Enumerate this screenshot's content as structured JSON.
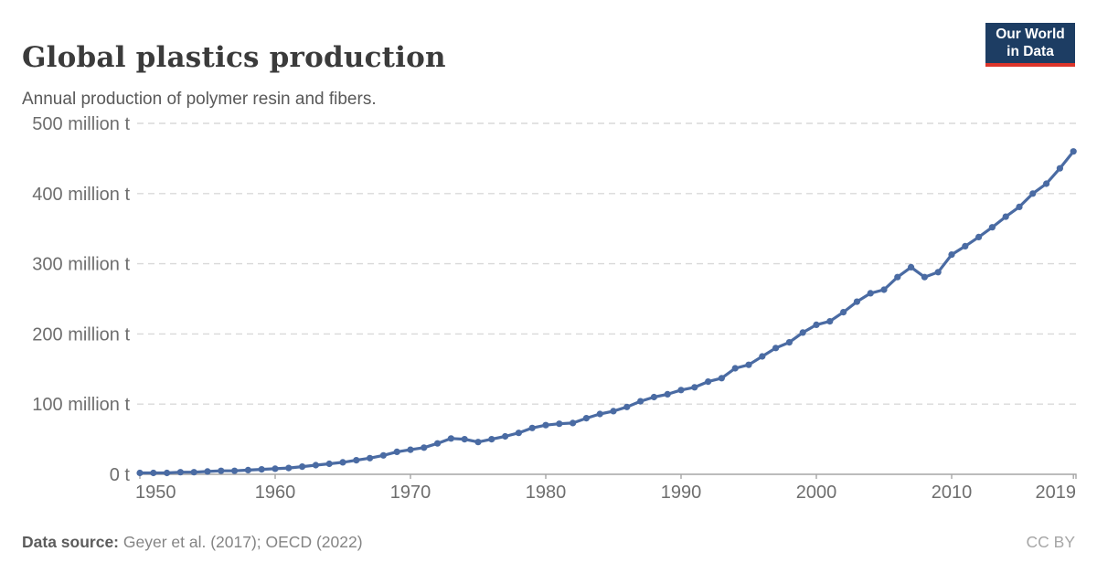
{
  "header": {
    "title": "Global plastics production",
    "subtitle": "Annual production of polymer resin and fibers.",
    "logo": {
      "line1": "Our World",
      "line2": "in Data",
      "bg_color": "#1d3d63",
      "stripe_color": "#dc352b",
      "text_color": "#ffffff"
    }
  },
  "footer": {
    "source_label": "Data source:",
    "source_value": "Geyer et al. (2017); OECD (2022)",
    "license": "CC BY"
  },
  "chart_data": {
    "type": "line",
    "title": "Global plastics production",
    "subtitle": "Annual production of polymer resin and fibers.",
    "unit": "million t",
    "x": [
      1950,
      1951,
      1952,
      1953,
      1954,
      1955,
      1956,
      1957,
      1958,
      1959,
      1960,
      1961,
      1962,
      1963,
      1964,
      1965,
      1966,
      1967,
      1968,
      1969,
      1970,
      1971,
      1972,
      1973,
      1974,
      1975,
      1976,
      1977,
      1978,
      1979,
      1980,
      1981,
      1982,
      1983,
      1984,
      1985,
      1986,
      1987,
      1988,
      1989,
      1990,
      1991,
      1992,
      1993,
      1994,
      1995,
      1996,
      1997,
      1998,
      1999,
      2000,
      2001,
      2002,
      2003,
      2004,
      2005,
      2006,
      2007,
      2008,
      2009,
      2010,
      2011,
      2012,
      2013,
      2014,
      2015,
      2016,
      2017,
      2018,
      2019
    ],
    "values": [
      2,
      2,
      2,
      3,
      3,
      4,
      5,
      5,
      6,
      7,
      8,
      9,
      11,
      13,
      15,
      17,
      20,
      23,
      27,
      32,
      35,
      38,
      44,
      51,
      50,
      46,
      50,
      54,
      59,
      66,
      70,
      72,
      73,
      80,
      86,
      90,
      96,
      104,
      110,
      114,
      120,
      124,
      132,
      137,
      151,
      156,
      168,
      180,
      188,
      202,
      213,
      218,
      231,
      246,
      258,
      263,
      281,
      295,
      281,
      288,
      313,
      325,
      338,
      352,
      367,
      381,
      400,
      414,
      436,
      460
    ],
    "xlim": [
      1950,
      2019
    ],
    "ylim": [
      0,
      500
    ],
    "x_ticks": [
      1950,
      1960,
      1970,
      1980,
      1990,
      2000,
      2010,
      2019
    ],
    "x_tick_labels": [
      "1950",
      "1960",
      "1970",
      "1980",
      "1990",
      "2000",
      "2010",
      "2019"
    ],
    "y_ticks": [
      0,
      100,
      200,
      300,
      400,
      500
    ],
    "y_tick_labels": [
      "0 t",
      "100 million t",
      "200 million t",
      "300 million t",
      "400 million t",
      "500 million t"
    ],
    "grid": "horizontal dashed",
    "legend": "none",
    "line_color": "#4a6ba3",
    "marker": "circle",
    "grid_color": "#d9d9d9",
    "axis_color": "#a6a6a6",
    "tick_label_color": "#6e6e6e"
  }
}
